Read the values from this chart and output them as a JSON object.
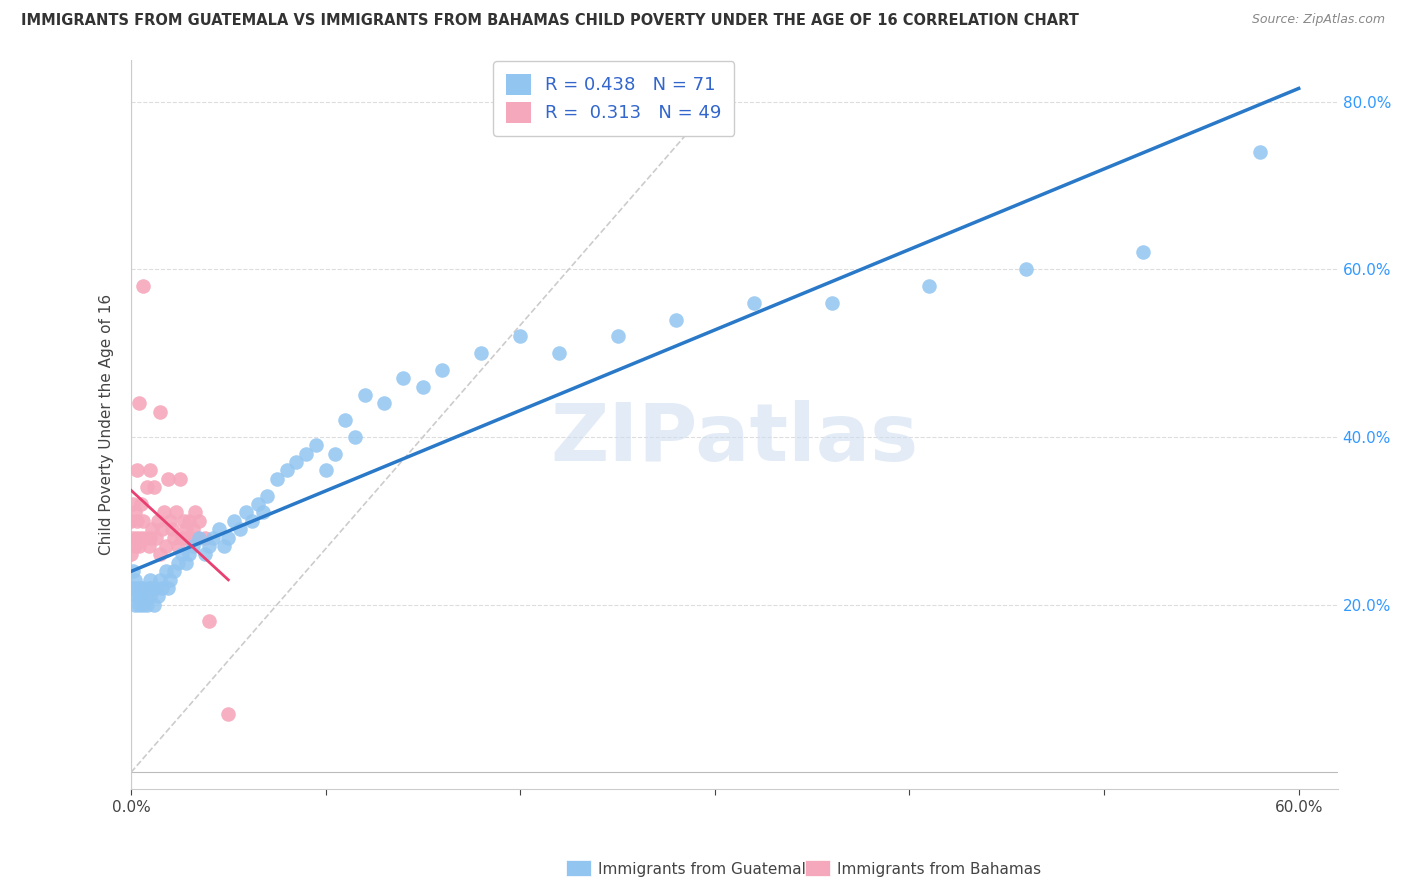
{
  "title": "IMMIGRANTS FROM GUATEMALA VS IMMIGRANTS FROM BAHAMAS CHILD POVERTY UNDER THE AGE OF 16 CORRELATION CHART",
  "source": "Source: ZipAtlas.com",
  "xlabel_bottom": [
    "Immigrants from Guatemala",
    "Immigrants from Bahamas"
  ],
  "ylabel": "Child Poverty Under the Age of 16",
  "xlim": [
    0.0,
    0.62
  ],
  "ylim": [
    -0.02,
    0.85
  ],
  "R_guatemala": 0.438,
  "N_guatemala": 71,
  "R_bahamas": 0.313,
  "N_bahamas": 49,
  "color_guatemala": "#92c5f0",
  "color_bahamas": "#f5a8bc",
  "color_regression_guatemala": "#2979c8",
  "color_regression_bahamas": "#e84070",
  "watermark": "ZIPatlas",
  "guatemala_x": [
    0.001,
    0.001,
    0.002,
    0.002,
    0.003,
    0.003,
    0.004,
    0.004,
    0.005,
    0.005,
    0.006,
    0.006,
    0.007,
    0.008,
    0.009,
    0.01,
    0.01,
    0.011,
    0.012,
    0.013,
    0.014,
    0.015,
    0.016,
    0.018,
    0.019,
    0.02,
    0.022,
    0.024,
    0.026,
    0.028,
    0.03,
    0.032,
    0.035,
    0.038,
    0.04,
    0.042,
    0.045,
    0.048,
    0.05,
    0.053,
    0.056,
    0.059,
    0.062,
    0.065,
    0.068,
    0.07,
    0.075,
    0.08,
    0.085,
    0.09,
    0.095,
    0.1,
    0.105,
    0.11,
    0.115,
    0.12,
    0.13,
    0.14,
    0.15,
    0.16,
    0.18,
    0.2,
    0.22,
    0.25,
    0.28,
    0.32,
    0.36,
    0.41,
    0.46,
    0.52,
    0.58
  ],
  "guatemala_y": [
    0.22,
    0.24,
    0.2,
    0.23,
    0.21,
    0.22,
    0.21,
    0.2,
    0.22,
    0.21,
    0.2,
    0.22,
    0.21,
    0.2,
    0.22,
    0.21,
    0.23,
    0.22,
    0.2,
    0.22,
    0.21,
    0.23,
    0.22,
    0.24,
    0.22,
    0.23,
    0.24,
    0.25,
    0.26,
    0.25,
    0.26,
    0.27,
    0.28,
    0.26,
    0.27,
    0.28,
    0.29,
    0.27,
    0.28,
    0.3,
    0.29,
    0.31,
    0.3,
    0.32,
    0.31,
    0.33,
    0.35,
    0.36,
    0.37,
    0.38,
    0.39,
    0.36,
    0.38,
    0.42,
    0.4,
    0.45,
    0.44,
    0.47,
    0.46,
    0.48,
    0.5,
    0.52,
    0.5,
    0.52,
    0.54,
    0.56,
    0.56,
    0.58,
    0.6,
    0.62,
    0.74
  ],
  "bahamas_x": [
    0.0,
    0.0,
    0.001,
    0.001,
    0.002,
    0.002,
    0.003,
    0.003,
    0.003,
    0.004,
    0.004,
    0.005,
    0.005,
    0.006,
    0.006,
    0.007,
    0.008,
    0.009,
    0.01,
    0.01,
    0.011,
    0.012,
    0.013,
    0.014,
    0.015,
    0.015,
    0.016,
    0.017,
    0.018,
    0.019,
    0.02,
    0.021,
    0.022,
    0.023,
    0.024,
    0.025,
    0.026,
    0.027,
    0.028,
    0.029,
    0.03,
    0.031,
    0.032,
    0.033,
    0.034,
    0.035,
    0.038,
    0.04,
    0.05
  ],
  "bahamas_y": [
    0.26,
    0.3,
    0.28,
    0.32,
    0.27,
    0.31,
    0.28,
    0.36,
    0.3,
    0.27,
    0.44,
    0.32,
    0.28,
    0.58,
    0.3,
    0.28,
    0.34,
    0.27,
    0.28,
    0.36,
    0.29,
    0.34,
    0.28,
    0.3,
    0.26,
    0.43,
    0.29,
    0.31,
    0.27,
    0.35,
    0.3,
    0.29,
    0.28,
    0.31,
    0.27,
    0.35,
    0.28,
    0.3,
    0.29,
    0.28,
    0.3,
    0.28,
    0.29,
    0.31,
    0.28,
    0.3,
    0.28,
    0.18,
    0.07
  ],
  "diag_line_x": [
    0.0,
    0.3
  ],
  "diag_line_y": [
    0.0,
    0.8
  ]
}
